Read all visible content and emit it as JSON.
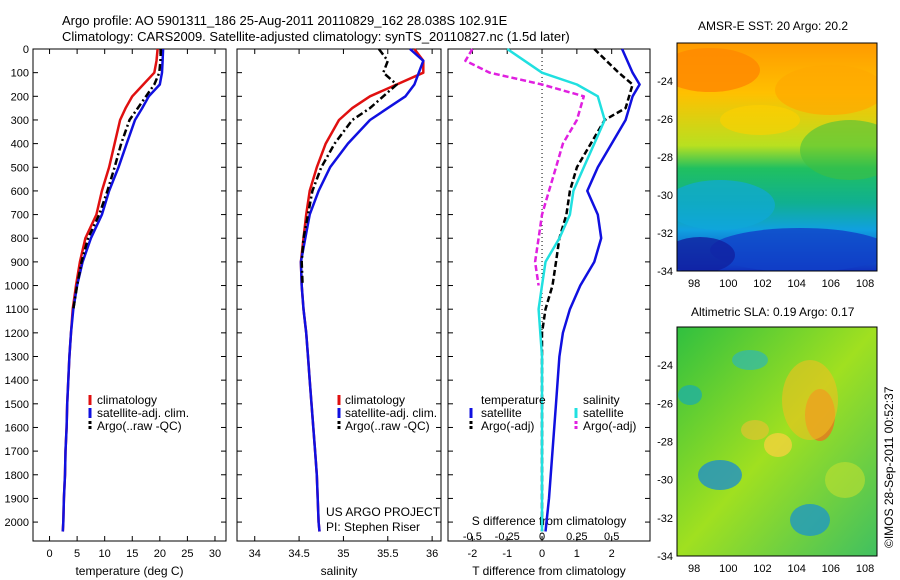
{
  "title_line1": "Argo profile: AO 5901311_186 25-Aug-2011 20110829_162 28.038S 102.91E",
  "title_line2": "Climatology: CARS2009. Satellite-adjusted climatology: synTS_20110827.nc (1.5d later)",
  "credit": "©IMOS 28-Sep-2011 00:52:37",
  "project_line1": "US ARGO PROJECT",
  "project_line2": "PI: Stephen Riser",
  "colors": {
    "climatology": "#e01010",
    "satellite": "#1010e0",
    "argo": "#000000",
    "salinity_satellite": "#20e0e0",
    "salinity_argo": "#e020e0"
  },
  "legend1": [
    "climatology",
    "satellite-adj. clim.",
    "Argo(..raw -QC)"
  ],
  "legend2": [
    "climatology",
    "satellite-adj. clim.",
    "Argo(..raw -QC)"
  ],
  "legend3": {
    "temp_header": "temperature",
    "sal_header": "salinity",
    "temp_items": [
      "satellite",
      "Argo(-adj)"
    ],
    "sal_items": [
      "satellite",
      "Argo(-adj)"
    ]
  },
  "chart_data": [
    {
      "type": "line",
      "panel": "temperature",
      "xlabel": "temperature (deg C)",
      "ylabel": "",
      "xlim": [
        -3,
        32
      ],
      "ylim": [
        2080,
        0
      ],
      "xticks": [
        0,
        5,
        10,
        15,
        20,
        25,
        30
      ],
      "yticks": [
        0,
        100,
        200,
        300,
        400,
        500,
        600,
        700,
        800,
        900,
        1000,
        1100,
        1200,
        1300,
        1400,
        1500,
        1600,
        1700,
        1800,
        1900,
        2000
      ],
      "series": [
        {
          "name": "climatology",
          "style": "solid",
          "points": [
            [
              19.6,
              0
            ],
            [
              19.4,
              50
            ],
            [
              19.0,
              100
            ],
            [
              17.0,
              150
            ],
            [
              15.0,
              200
            ],
            [
              13.8,
              250
            ],
            [
              12.8,
              300
            ],
            [
              11.8,
              400
            ],
            [
              10.8,
              500
            ],
            [
              9.5,
              600
            ],
            [
              8.5,
              700
            ],
            [
              6.5,
              800
            ],
            [
              5.5,
              900
            ],
            [
              4.8,
              1000
            ],
            [
              4.2,
              1100
            ],
            [
              3.9,
              1200
            ],
            [
              3.6,
              1300
            ],
            [
              3.4,
              1400
            ],
            [
              3.2,
              1500
            ],
            [
              3.1,
              1600
            ],
            [
              2.9,
              1700
            ],
            [
              2.8,
              1800
            ],
            [
              2.6,
              1900
            ],
            [
              2.5,
              2000
            ],
            [
              2.4,
              2040
            ]
          ]
        },
        {
          "name": "satellite-adj. clim.",
          "style": "solid",
          "points": [
            [
              20.6,
              0
            ],
            [
              20.5,
              50
            ],
            [
              20.4,
              100
            ],
            [
              20.0,
              150
            ],
            [
              18.0,
              200
            ],
            [
              16.8,
              250
            ],
            [
              15.5,
              300
            ],
            [
              14.0,
              400
            ],
            [
              12.5,
              500
            ],
            [
              10.8,
              600
            ],
            [
              9.5,
              700
            ],
            [
              7.5,
              800
            ],
            [
              6.0,
              900
            ],
            [
              5.0,
              1000
            ],
            [
              4.3,
              1100
            ],
            [
              3.9,
              1200
            ],
            [
              3.6,
              1300
            ],
            [
              3.4,
              1400
            ],
            [
              3.2,
              1500
            ],
            [
              3.1,
              1600
            ],
            [
              2.9,
              1700
            ],
            [
              2.8,
              1800
            ],
            [
              2.6,
              1900
            ],
            [
              2.5,
              2000
            ],
            [
              2.4,
              2040
            ]
          ]
        },
        {
          "name": "Argo(..raw -QC)",
          "style": "dashdot",
          "points": [
            [
              20.2,
              0
            ],
            [
              20.1,
              50
            ],
            [
              19.9,
              100
            ],
            [
              19.0,
              150
            ],
            [
              17.5,
              200
            ],
            [
              16.0,
              250
            ],
            [
              14.5,
              300
            ],
            [
              13.0,
              400
            ],
            [
              11.8,
              500
            ],
            [
              10.5,
              600
            ],
            [
              9.0,
              700
            ],
            [
              7.0,
              800
            ],
            [
              5.8,
              900
            ],
            [
              5.0,
              1000
            ],
            [
              4.3,
              1100
            ]
          ]
        }
      ]
    },
    {
      "type": "line",
      "panel": "salinity",
      "xlabel": "salinity",
      "ylabel": "",
      "xlim": [
        33.8,
        36.1
      ],
      "ylim": [
        2080,
        0
      ],
      "xticks": [
        34,
        34.5,
        35,
        35.5,
        36
      ],
      "series": [
        {
          "name": "climatology",
          "style": "solid",
          "points": [
            [
              35.8,
              0
            ],
            [
              35.9,
              50
            ],
            [
              35.9,
              100
            ],
            [
              35.6,
              150
            ],
            [
              35.3,
              200
            ],
            [
              35.1,
              250
            ],
            [
              34.95,
              300
            ],
            [
              34.8,
              400
            ],
            [
              34.7,
              500
            ],
            [
              34.62,
              600
            ],
            [
              34.58,
              700
            ],
            [
              34.55,
              800
            ],
            [
              34.52,
              900
            ],
            [
              34.53,
              1000
            ],
            [
              34.55,
              1100
            ],
            [
              34.58,
              1200
            ],
            [
              34.6,
              1300
            ],
            [
              34.62,
              1400
            ],
            [
              34.64,
              1500
            ],
            [
              34.66,
              1600
            ],
            [
              34.68,
              1700
            ],
            [
              34.7,
              1800
            ],
            [
              34.71,
              1900
            ],
            [
              34.72,
              2000
            ],
            [
              34.73,
              2040
            ]
          ]
        },
        {
          "name": "satellite-adj. clim.",
          "style": "solid",
          "points": [
            [
              35.75,
              0
            ],
            [
              35.9,
              50
            ],
            [
              35.85,
              100
            ],
            [
              35.8,
              150
            ],
            [
              35.7,
              200
            ],
            [
              35.5,
              250
            ],
            [
              35.3,
              300
            ],
            [
              35.05,
              400
            ],
            [
              34.85,
              500
            ],
            [
              34.72,
              600
            ],
            [
              34.62,
              700
            ],
            [
              34.57,
              800
            ],
            [
              34.52,
              900
            ],
            [
              34.53,
              1000
            ],
            [
              34.55,
              1100
            ],
            [
              34.58,
              1200
            ],
            [
              34.6,
              1300
            ],
            [
              34.62,
              1400
            ],
            [
              34.64,
              1500
            ],
            [
              34.66,
              1600
            ],
            [
              34.68,
              1700
            ],
            [
              34.7,
              1800
            ],
            [
              34.71,
              1900
            ],
            [
              34.72,
              2000
            ],
            [
              34.73,
              2040
            ]
          ]
        },
        {
          "name": "Argo(..raw -QC)",
          "style": "dashdot",
          "points": [
            [
              35.4,
              0
            ],
            [
              35.5,
              50
            ],
            [
              35.45,
              100
            ],
            [
              35.6,
              150
            ],
            [
              35.45,
              200
            ],
            [
              35.3,
              250
            ],
            [
              35.1,
              300
            ],
            [
              34.9,
              400
            ],
            [
              34.75,
              500
            ],
            [
              34.65,
              600
            ],
            [
              34.6,
              700
            ],
            [
              34.55,
              800
            ],
            [
              34.53,
              900
            ],
            [
              34.54,
              1000
            ]
          ]
        }
      ]
    },
    {
      "type": "line",
      "panel": "difference",
      "xlabel": "T difference from climatology",
      "x2label": "S difference from climatology",
      "xlim": [
        -2.7,
        3.1
      ],
      "ylim": [
        2080,
        0
      ],
      "xticks": [
        -2,
        -1,
        0,
        1,
        2
      ],
      "x2ticks": [
        [
          "-0.5",
          -2
        ],
        [
          "-0.25",
          -1
        ],
        [
          "0",
          0
        ],
        [
          "0.25",
          1
        ],
        [
          "0.5",
          2
        ]
      ],
      "series": [
        {
          "name": "temperature satellite",
          "style": "solid",
          "points": [
            [
              2.3,
              0
            ],
            [
              2.6,
              100
            ],
            [
              2.8,
              150
            ],
            [
              2.6,
              200
            ],
            [
              2.4,
              300
            ],
            [
              2.0,
              400
            ],
            [
              1.6,
              500
            ],
            [
              1.3,
              600
            ],
            [
              1.6,
              700
            ],
            [
              1.7,
              800
            ],
            [
              1.5,
              900
            ],
            [
              1.1,
              1000
            ],
            [
              0.8,
              1100
            ],
            [
              0.6,
              1200
            ],
            [
              0.5,
              1300
            ],
            [
              0.4,
              1500
            ],
            [
              0.3,
              1700
            ],
            [
              0.2,
              1900
            ],
            [
              0.1,
              2040
            ]
          ]
        },
        {
          "name": "temperature Argo(-adj)",
          "style": "dashed",
          "points": [
            [
              1.5,
              0
            ],
            [
              2.2,
              100
            ],
            [
              2.6,
              150
            ],
            [
              2.4,
              250
            ],
            [
              1.8,
              300
            ],
            [
              1.4,
              400
            ],
            [
              1.0,
              500
            ],
            [
              0.8,
              600
            ],
            [
              0.7,
              700
            ],
            [
              0.5,
              800
            ],
            [
              0.4,
              900
            ],
            [
              0.3,
              1000
            ],
            [
              0.1,
              1100
            ],
            [
              0.0,
              1200
            ],
            [
              0.0,
              1400
            ],
            [
              0.0,
              2040
            ]
          ]
        },
        {
          "name": "salinity satellite",
          "style": "solid",
          "points": [
            [
              -1.0,
              0
            ],
            [
              -0.5,
              50
            ],
            [
              0.0,
              100
            ],
            [
              1.0,
              150
            ],
            [
              1.6,
              200
            ],
            [
              1.8,
              300
            ],
            [
              1.5,
              400
            ],
            [
              1.2,
              500
            ],
            [
              0.9,
              600
            ],
            [
              0.8,
              700
            ],
            [
              0.5,
              800
            ],
            [
              0.1,
              900
            ],
            [
              0.0,
              1000
            ],
            [
              -0.1,
              1100
            ],
            [
              0.0,
              1300
            ],
            [
              0.0,
              2040
            ]
          ]
        },
        {
          "name": "salinity Argo(-adj)",
          "style": "dashed",
          "points": [
            [
              -2.0,
              0
            ],
            [
              -2.2,
              50
            ],
            [
              -1.5,
              100
            ],
            [
              0.0,
              150
            ],
            [
              1.2,
              200
            ],
            [
              1.0,
              300
            ],
            [
              0.6,
              400
            ],
            [
              0.4,
              500
            ],
            [
              0.2,
              600
            ],
            [
              0.0,
              700
            ],
            [
              -0.1,
              800
            ],
            [
              -0.2,
              900
            ],
            [
              -0.1,
              1000
            ]
          ]
        }
      ]
    },
    {
      "type": "heatmap",
      "panel": "sst_map",
      "title": "AMSR-E SST: 20 Argo: 20.2",
      "xlim": [
        97,
        108.7
      ],
      "ylim": [
        -34,
        -22
      ],
      "xticks": [
        98,
        100,
        102,
        104,
        106,
        108
      ],
      "yticks": [
        -24,
        -26,
        -28,
        -30,
        -32,
        -34
      ],
      "marker": [
        102.91,
        -28.04
      ]
    },
    {
      "type": "heatmap",
      "panel": "sla_map",
      "title": "Altimetric SLA: 0.19 Argo: 0.17",
      "xlim": [
        97,
        108.7
      ],
      "ylim": [
        -34,
        -22
      ],
      "xticks": [
        98,
        100,
        102,
        104,
        106,
        108
      ],
      "yticks": [
        -24,
        -26,
        -28,
        -30,
        -32,
        -34
      ],
      "marker": [
        102.91,
        -28.04
      ]
    }
  ]
}
